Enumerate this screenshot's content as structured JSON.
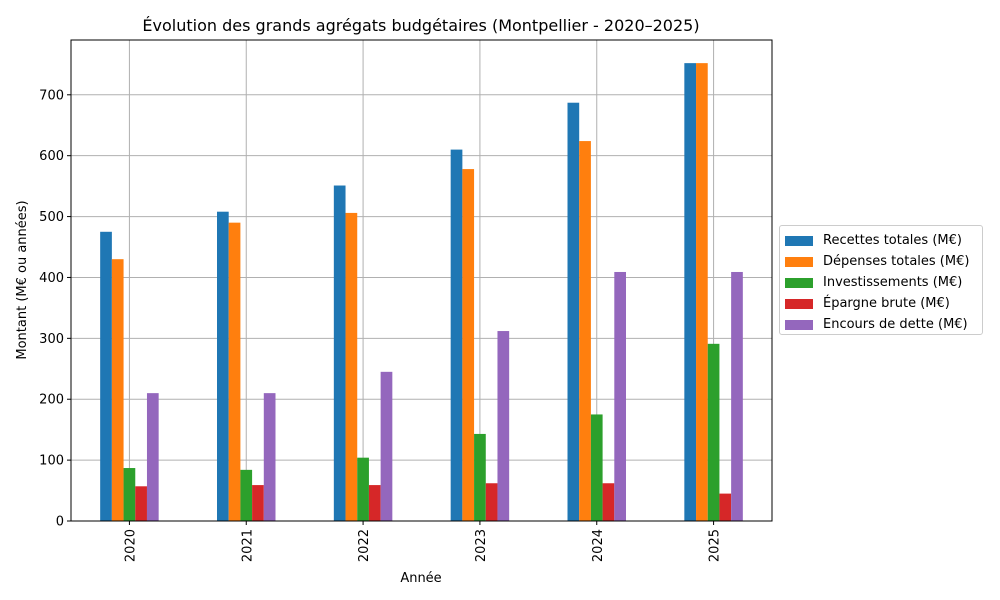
{
  "chart_data": {
    "type": "bar",
    "title": "Évolution des grands agrégats budgétaires (Montpellier - 2020–2025)",
    "xlabel": "Année",
    "ylabel": "Montant (M€ ou années)",
    "categories": [
      "2020",
      "2021",
      "2022",
      "2023",
      "2024",
      "2025"
    ],
    "ylim": [
      0,
      790
    ],
    "yticks": [
      0,
      100,
      200,
      300,
      400,
      500,
      600,
      700
    ],
    "ytick_labels": [
      "0",
      "100",
      "200",
      "300",
      "400",
      "500",
      "600",
      "700"
    ],
    "grid": true,
    "legend_position": "right",
    "series": [
      {
        "name": "Recettes totales (M€)",
        "color": "#1f77b4",
        "values": [
          475,
          508,
          551,
          610,
          687,
          752
        ]
      },
      {
        "name": "Dépenses totales (M€)",
        "color": "#ff7f0e",
        "values": [
          430,
          490,
          506,
          578,
          624,
          752
        ]
      },
      {
        "name": "Investissements (M€)",
        "color": "#2ca02c",
        "values": [
          87,
          84,
          104,
          143,
          175,
          291
        ]
      },
      {
        "name": "Épargne brute (M€)",
        "color": "#d62728",
        "values": [
          57,
          59,
          59,
          62,
          62,
          45
        ]
      },
      {
        "name": "Encours de dette (M€)",
        "color": "#9467bd",
        "values": [
          210,
          210,
          245,
          312,
          409,
          409
        ]
      }
    ]
  }
}
